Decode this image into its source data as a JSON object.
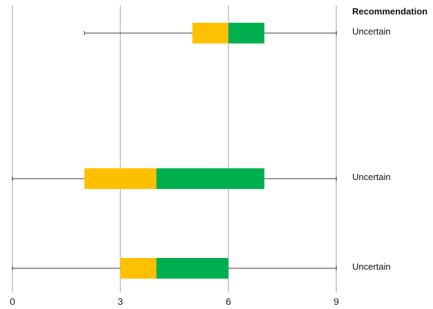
{
  "chart_data": {
    "type": "box",
    "orientation": "horizontal",
    "xlim": [
      0,
      9
    ],
    "x_ticks": [
      0,
      3,
      6,
      9
    ],
    "x_tick_labels": [
      "0",
      "3",
      "6",
      "9"
    ],
    "grid": "vertical",
    "recommendation_header": "Recommendation",
    "rows": [
      {
        "min": 2,
        "q1": 5,
        "median": 6,
        "q3": 7,
        "max": 9,
        "recommendation": "Uncertain"
      },
      {
        "min": 0,
        "q1": 2,
        "median": 4,
        "q3": 7,
        "max": 9,
        "recommendation": "Uncertain"
      },
      {
        "min": 0,
        "q1": 3,
        "median": 4,
        "q3": 6,
        "max": 9,
        "recommendation": "Uncertain"
      }
    ],
    "colors": {
      "lower_box": "#FFC000",
      "upper_box": "#00B050",
      "whisker": "#333333",
      "grid": "#BFBFBF"
    }
  }
}
